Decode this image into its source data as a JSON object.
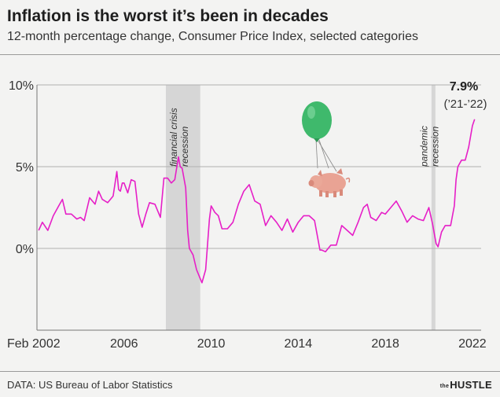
{
  "title": "Inflation is the worst it’s been in decades",
  "subtitle": "12-month percentage change, Consumer Price Index, selected categories",
  "source": "DATA: US Bureau of Labor Statistics",
  "brand": {
    "prefix": "the",
    "name": "HUSTLE"
  },
  "colors": {
    "line": "#e61fc7",
    "recession": "#d6d6d6",
    "grid": "#b0b0b0",
    "background": "#f3f3f2",
    "balloon": "#3fb96c",
    "pig": "#e9a394"
  },
  "icons": [
    "balloon-icon",
    "pig-icon"
  ],
  "chart_data": {
    "type": "line",
    "title": "Inflation is the worst it’s been in decades",
    "subtitle": "12-month percentage change, Consumer Price Index, selected categories",
    "xlim": [
      2002.0,
      2022.4
    ],
    "ylim": [
      -5,
      10
    ],
    "grid": true,
    "x_ticks": [
      {
        "value": 2002,
        "label": "Feb 2002"
      },
      {
        "value": 2006,
        "label": "2006"
      },
      {
        "value": 2010,
        "label": "2010"
      },
      {
        "value": 2014,
        "label": "2014"
      },
      {
        "value": 2018,
        "label": "2018"
      },
      {
        "value": 2022,
        "label": "2022"
      }
    ],
    "y_ticks": [
      {
        "value": 10,
        "label": "10%"
      },
      {
        "value": 5,
        "label": "5%"
      },
      {
        "value": 0,
        "label": "0%"
      }
    ],
    "recessions": [
      {
        "start": 2007.92,
        "end": 2009.5,
        "label": [
          "financial crisis",
          "recession"
        ]
      },
      {
        "start": 2020.12,
        "end": 2020.3,
        "label": [
          "pandemic",
          "recession"
        ]
      }
    ],
    "annotation": {
      "value_label": "7.9%",
      "period_label": "(’21-’22)"
    },
    "x": [
      2002.08,
      2002.25,
      2002.5,
      2002.75,
      2003.0,
      2003.17,
      2003.33,
      2003.58,
      2003.83,
      2004.0,
      2004.17,
      2004.42,
      2004.67,
      2004.83,
      2005.0,
      2005.25,
      2005.5,
      2005.67,
      2005.75,
      2005.83,
      2005.92,
      2006.0,
      2006.17,
      2006.33,
      2006.5,
      2006.67,
      2006.83,
      2007.0,
      2007.17,
      2007.42,
      2007.67,
      2007.83,
      2008.0,
      2008.17,
      2008.33,
      2008.5,
      2008.58,
      2008.67,
      2008.83,
      2008.92,
      2009.0,
      2009.17,
      2009.33,
      2009.58,
      2009.75,
      2009.92,
      2010.0,
      2010.17,
      2010.33,
      2010.5,
      2010.75,
      2011.0,
      2011.25,
      2011.5,
      2011.75,
      2012.0,
      2012.25,
      2012.5,
      2012.75,
      2013.0,
      2013.25,
      2013.5,
      2013.75,
      2014.0,
      2014.25,
      2014.5,
      2014.75,
      2015.0,
      2015.08,
      2015.25,
      2015.5,
      2015.75,
      2016.0,
      2016.25,
      2016.5,
      2016.75,
      2017.0,
      2017.17,
      2017.33,
      2017.58,
      2017.83,
      2018.0,
      2018.25,
      2018.5,
      2018.75,
      2019.0,
      2019.25,
      2019.5,
      2019.75,
      2020.0,
      2020.17,
      2020.33,
      2020.42,
      2020.58,
      2020.75,
      2021.0,
      2021.17,
      2021.25,
      2021.33,
      2021.5,
      2021.67,
      2021.83,
      2022.0,
      2022.1
    ],
    "y": [
      1.1,
      1.6,
      1.1,
      2.0,
      2.6,
      3.0,
      2.1,
      2.1,
      1.8,
      1.9,
      1.7,
      3.1,
      2.7,
      3.5,
      3.0,
      2.8,
      3.2,
      4.7,
      3.6,
      3.5,
      4.0,
      4.0,
      3.4,
      4.2,
      4.1,
      2.1,
      1.3,
      2.1,
      2.8,
      2.7,
      1.9,
      4.3,
      4.3,
      4.0,
      4.2,
      5.6,
      5.0,
      4.9,
      3.7,
      1.1,
      0.0,
      -0.4,
      -1.3,
      -2.1,
      -1.3,
      1.8,
      2.6,
      2.2,
      2.0,
      1.2,
      1.2,
      1.6,
      2.7,
      3.5,
      3.9,
      2.9,
      2.7,
      1.4,
      2.0,
      1.6,
      1.1,
      1.8,
      1.0,
      1.6,
      2.0,
      2.0,
      1.7,
      -0.1,
      -0.1,
      -0.2,
      0.2,
      0.2,
      1.4,
      1.1,
      0.8,
      1.6,
      2.5,
      2.7,
      1.9,
      1.7,
      2.2,
      2.1,
      2.5,
      2.9,
      2.3,
      1.6,
      2.0,
      1.8,
      1.7,
      2.5,
      1.5,
      0.3,
      0.1,
      1.0,
      1.4,
      1.4,
      2.6,
      4.2,
      5.0,
      5.4,
      5.4,
      6.2,
      7.5,
      7.9
    ]
  }
}
